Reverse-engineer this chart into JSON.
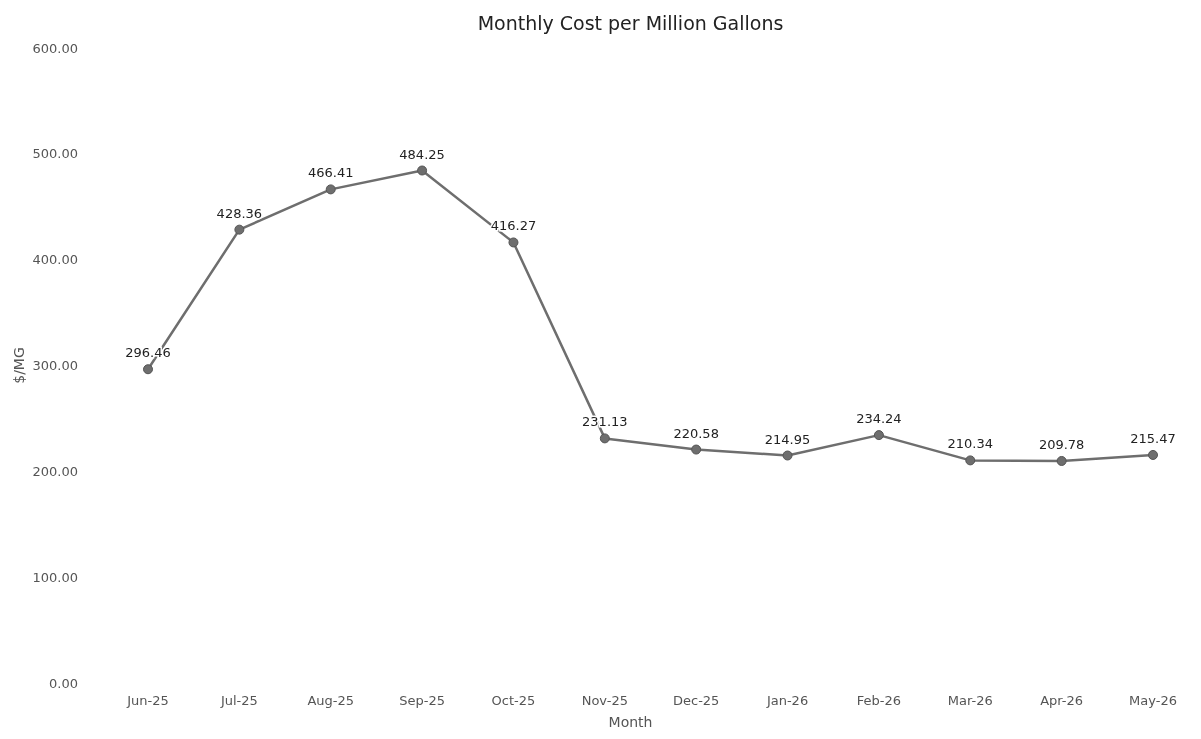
{
  "chart_data": {
    "type": "line",
    "title": "Monthly Cost per Million Gallons",
    "xlabel": "Month",
    "ylabel": "$/MG",
    "categories": [
      "Jun-25",
      "Jul-25",
      "Aug-25",
      "Sep-25",
      "Oct-25",
      "Nov-25",
      "Dec-25",
      "Jan-26",
      "Feb-26",
      "Mar-26",
      "Apr-26",
      "May-26"
    ],
    "series": [
      {
        "color": "#6e6e6e",
        "values": [
          296.46,
          428.36,
          466.41,
          484.25,
          416.27,
          231.13,
          220.58,
          214.95,
          234.24,
          210.34,
          209.78,
          215.47
        ]
      }
    ],
    "ylim": [
      0,
      600
    ],
    "yticks": [
      {
        "value": 0,
        "label": "0.00"
      },
      {
        "value": 100,
        "label": "100.00"
      },
      {
        "value": 200,
        "label": "200.00"
      },
      {
        "value": 300,
        "label": "300.00"
      },
      {
        "value": 400,
        "label": "400.00"
      },
      {
        "value": 500,
        "label": "500.00"
      },
      {
        "value": 600,
        "label": "600.00"
      }
    ],
    "data_labels": true,
    "marker": "circle",
    "grid": false
  }
}
